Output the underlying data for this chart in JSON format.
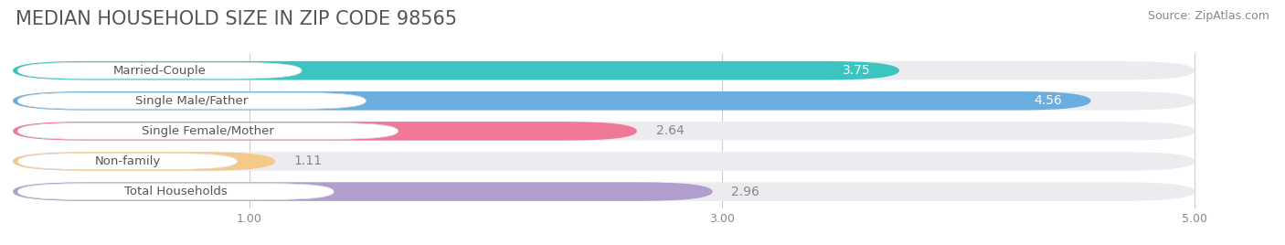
{
  "title": "MEDIAN HOUSEHOLD SIZE IN ZIP CODE 98565",
  "source": "Source: ZipAtlas.com",
  "categories": [
    "Married-Couple",
    "Single Male/Father",
    "Single Female/Mother",
    "Non-family",
    "Total Households"
  ],
  "values": [
    3.75,
    4.56,
    2.64,
    1.11,
    2.96
  ],
  "bar_colors": [
    "#3cc4c0",
    "#6aaee0",
    "#f07898",
    "#f5c98a",
    "#b09fcc"
  ],
  "bar_bg_color": "#ebebf0",
  "background_color": "#ffffff",
  "value_color_inside": "#ffffff",
  "value_color_outside": "#888888",
  "inside_threshold": 3.0,
  "xlim": [
    0,
    5.3
  ],
  "xmin": 0,
  "xticks": [
    1.0,
    3.0,
    5.0
  ],
  "title_fontsize": 15,
  "source_fontsize": 9,
  "bar_label_fontsize": 10,
  "category_fontsize": 9.5
}
